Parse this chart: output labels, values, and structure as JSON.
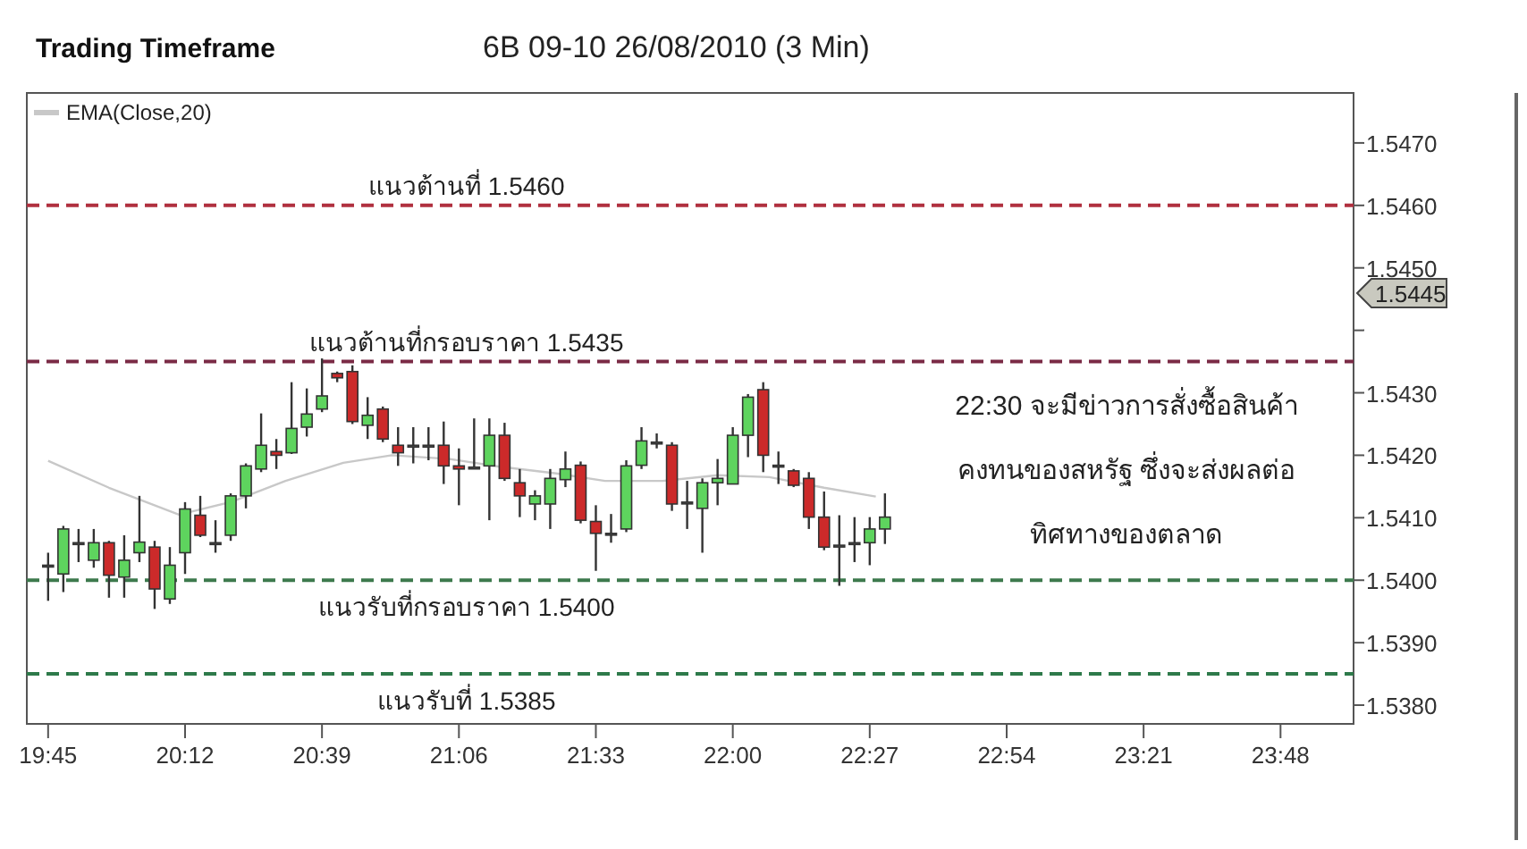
{
  "chart_data": {
    "type": "candlestick",
    "title": "Trading Timeframe",
    "subtitle": "6B 09-10  26/08/2010 (3 Min)",
    "x": [
      19.75,
      19.8,
      19.85,
      19.9,
      19.95,
      20,
      20.05,
      20.1,
      20.15,
      20.2,
      20.25,
      20.3,
      20.35,
      20.4,
      20.45,
      20.5,
      20.55,
      20.6,
      20.65,
      20.7,
      20.75,
      20.8,
      20.85,
      20.9,
      20.95,
      21,
      21.05,
      21.1,
      21.15,
      21.2,
      21.25,
      21.3,
      21.35,
      21.4,
      21.45,
      21.5,
      21.55,
      21.6,
      21.65,
      21.7,
      21.75,
      21.8,
      21.85,
      21.9,
      21.95,
      22,
      22.05,
      22.1,
      22.15,
      22.2,
      22.25,
      22.3,
      22.35,
      22.4,
      22.45,
      22.5
    ],
    "ohlc": [
      [
        1.54024,
        1.54044,
        1.53967,
        1.54024
      ],
      [
        1.5401,
        1.54087,
        1.53981,
        1.54082
      ],
      [
        1.5406,
        1.54082,
        1.54029,
        1.5406
      ],
      [
        1.54032,
        1.54082,
        1.5402,
        1.5406
      ],
      [
        1.5406,
        1.54063,
        1.53972,
        1.54008
      ],
      [
        1.54005,
        1.54072,
        1.53972,
        1.54032
      ],
      [
        1.54044,
        1.54135,
        1.54029,
        1.54061
      ],
      [
        1.54053,
        1.54063,
        1.53954,
        1.53986
      ],
      [
        1.5397,
        1.54053,
        1.53962,
        1.54024
      ],
      [
        1.54044,
        1.54125,
        1.5401,
        1.54114
      ],
      [
        1.54104,
        1.54135,
        1.54069,
        1.54072
      ],
      [
        1.5406,
        1.54096,
        1.54044,
        1.5406
      ],
      [
        1.54072,
        1.54139,
        1.54063,
        1.54135
      ],
      [
        1.54135,
        1.54187,
        1.54115,
        1.54183
      ],
      [
        1.54178,
        1.54267,
        1.54173,
        1.54216
      ],
      [
        1.54206,
        1.54226,
        1.54178,
        1.542
      ],
      [
        1.54204,
        1.54317,
        1.54202,
        1.54243
      ],
      [
        1.54245,
        1.54307,
        1.5423,
        1.54266
      ],
      [
        1.54274,
        1.54355,
        1.54269,
        1.54295
      ],
      [
        1.54331,
        1.54334,
        1.54317,
        1.54324
      ],
      [
        1.54334,
        1.54344,
        1.5425,
        1.54254
      ],
      [
        1.54248,
        1.54293,
        1.54226,
        1.54264
      ],
      [
        1.54274,
        1.54278,
        1.54221,
        1.54226
      ],
      [
        1.54216,
        1.54245,
        1.54183,
        1.54204
      ],
      [
        1.54216,
        1.54245,
        1.54187,
        1.54216
      ],
      [
        1.54216,
        1.54245,
        1.54192,
        1.54216
      ],
      [
        1.54216,
        1.54254,
        1.54154,
        1.54183
      ],
      [
        1.54183,
        1.54211,
        1.5412,
        1.54178
      ],
      [
        1.54181,
        1.54259,
        1.54178,
        1.54181
      ],
      [
        1.54183,
        1.54259,
        1.54096,
        1.54232
      ],
      [
        1.54232,
        1.54252,
        1.54159,
        1.54163
      ],
      [
        1.54156,
        1.54178,
        1.54101,
        1.54135
      ],
      [
        1.54122,
        1.54144,
        1.54096,
        1.54135
      ],
      [
        1.54122,
        1.54178,
        1.54082,
        1.54163
      ],
      [
        1.54161,
        1.54206,
        1.54149,
        1.54178
      ],
      [
        1.54184,
        1.5419,
        1.54091,
        1.54096
      ],
      [
        1.54094,
        1.5412,
        1.54015,
        1.54075
      ],
      [
        1.54075,
        1.54106,
        1.5406,
        1.54075
      ],
      [
        1.54082,
        1.54192,
        1.54077,
        1.54183
      ],
      [
        1.54184,
        1.54245,
        1.54178,
        1.54223
      ],
      [
        1.54221,
        1.54235,
        1.54211,
        1.54221
      ],
      [
        1.54216,
        1.54221,
        1.54111,
        1.54122
      ],
      [
        1.54125,
        1.54159,
        1.54082,
        1.54125
      ],
      [
        1.54115,
        1.54163,
        1.54044,
        1.54156
      ],
      [
        1.54156,
        1.54194,
        1.5412,
        1.54163
      ],
      [
        1.54154,
        1.54245,
        1.54154,
        1.54232
      ],
      [
        1.54232,
        1.54298,
        1.54197,
        1.54293
      ],
      [
        1.54305,
        1.54317,
        1.54173,
        1.542
      ],
      [
        1.54184,
        1.54206,
        1.54154,
        1.54184
      ],
      [
        1.54175,
        1.54178,
        1.54149,
        1.54152
      ],
      [
        1.54163,
        1.54173,
        1.54082,
        1.54101
      ],
      [
        1.54101,
        1.54142,
        1.54048,
        1.54053
      ],
      [
        1.54056,
        1.54104,
        1.53991,
        1.54056
      ],
      [
        1.5406,
        1.54101,
        1.54029,
        1.5406
      ],
      [
        1.5406,
        1.54101,
        1.54024,
        1.54082
      ],
      [
        1.54082,
        1.54139,
        1.54058,
        1.54101
      ]
    ],
    "colors": [
      "#555555",
      "#5ed45e",
      "#555555",
      "#5ed45e",
      "#cc2a2a",
      "#5ed45e",
      "#5ed45e",
      "#cc2a2a",
      "#5ed45e",
      "#5ed45e",
      "#cc2a2a",
      "#555555",
      "#5ed45e",
      "#5ed45e",
      "#5ed45e",
      "#cc2a2a",
      "#5ed45e",
      "#5ed45e",
      "#5ed45e",
      "#cc2a2a",
      "#cc2a2a",
      "#5ed45e",
      "#cc2a2a",
      "#cc2a2a",
      "#555555",
      "#555555",
      "#cc2a2a",
      "#cc2a2a",
      "#555555",
      "#5ed45e",
      "#cc2a2a",
      "#cc2a2a",
      "#5ed45e",
      "#5ed45e",
      "#5ed45e",
      "#cc2a2a",
      "#cc2a2a",
      "#555555",
      "#5ed45e",
      "#5ed45e",
      "#555555",
      "#cc2a2a",
      "#555555",
      "#5ed45e",
      "#5ed45e",
      "#5ed45e",
      "#5ed45e",
      "#cc2a2a",
      "#555555",
      "#cc2a2a",
      "#cc2a2a",
      "#cc2a2a",
      "#555555",
      "#555555",
      "#5ed45e",
      "#5ed45e"
    ],
    "series": [
      {
        "name": "EMA(Close,20)",
        "type": "line",
        "color": "#c8c8c8",
        "x": [
          19.75,
          19.95,
          20.18,
          20.35,
          20.53,
          20.72,
          20.88,
          21.07,
          21.23,
          21.42,
          21.58,
          21.77,
          21.95,
          22.12,
          22.3,
          22.47
        ],
        "values": [
          1.54191,
          1.54148,
          1.54105,
          1.54125,
          1.54159,
          1.54188,
          1.542,
          1.54194,
          1.54182,
          1.54171,
          1.54159,
          1.54159,
          1.54168,
          1.54165,
          1.54148,
          1.54134
        ]
      }
    ],
    "legend": "top left",
    "xlim": [
      19.68,
      24.04
    ],
    "xticks": [
      {
        "value": 19.75,
        "label": "19:45"
      },
      {
        "value": 20.2,
        "label": "20:12"
      },
      {
        "value": 20.65,
        "label": "20:39"
      },
      {
        "value": 21.1,
        "label": "21:06"
      },
      {
        "value": 21.55,
        "label": "21:33"
      },
      {
        "value": 22,
        "label": "22:00"
      },
      {
        "value": 22.45,
        "label": "22:27"
      },
      {
        "value": 22.9,
        "label": "22:54"
      },
      {
        "value": 23.35,
        "label": "23:21"
      },
      {
        "value": 23.8,
        "label": "23:48"
      }
    ],
    "ylim": [
      1.5377,
      1.5478
    ],
    "yticks": [
      {
        "value": 1.538,
        "label": "1.5380"
      },
      {
        "value": 1.539,
        "label": "1.5390"
      },
      {
        "value": 1.54,
        "label": "1.5400"
      },
      {
        "value": 1.541,
        "label": "1.5410"
      },
      {
        "value": 1.542,
        "label": "1.5420"
      },
      {
        "value": 1.543,
        "label": "1.5430"
      },
      {
        "value": 1.544,
        "label": null
      },
      {
        "value": 1.545,
        "label": "1.5450"
      },
      {
        "value": 1.546,
        "label": "1.5460"
      },
      {
        "value": 1.547,
        "label": "1.5470"
      }
    ],
    "ref_lines": [
      {
        "axis": "y",
        "value": 1.546,
        "label": "แนวต้านที่ 1.5460",
        "color": "#b0303f",
        "line_style": "dashed"
      },
      {
        "axis": "y",
        "value": 1.5435,
        "label": "แนวต้านที่กรอบราคา 1.5435",
        "color": "#7a2a45",
        "line_style": "dashed"
      },
      {
        "axis": "y",
        "value": 1.54,
        "label": "แนวรับที่กรอบราคา 1.5400",
        "color": "#3d7a4d",
        "line_style": "dashed"
      },
      {
        "axis": "y",
        "value": 1.5385,
        "label": "แนวรับที่ 1.5385",
        "color": "#2e7a4a",
        "line_style": "dashed"
      }
    ],
    "annotations": [
      "22:30 จะมีข่าวการสั่งซื้อสินค้า\nคงทนของสหรัฐ ซึ่งจะส่งผลต่อ\nทิศทางของตลาด",
      "1.5445"
    ]
  }
}
